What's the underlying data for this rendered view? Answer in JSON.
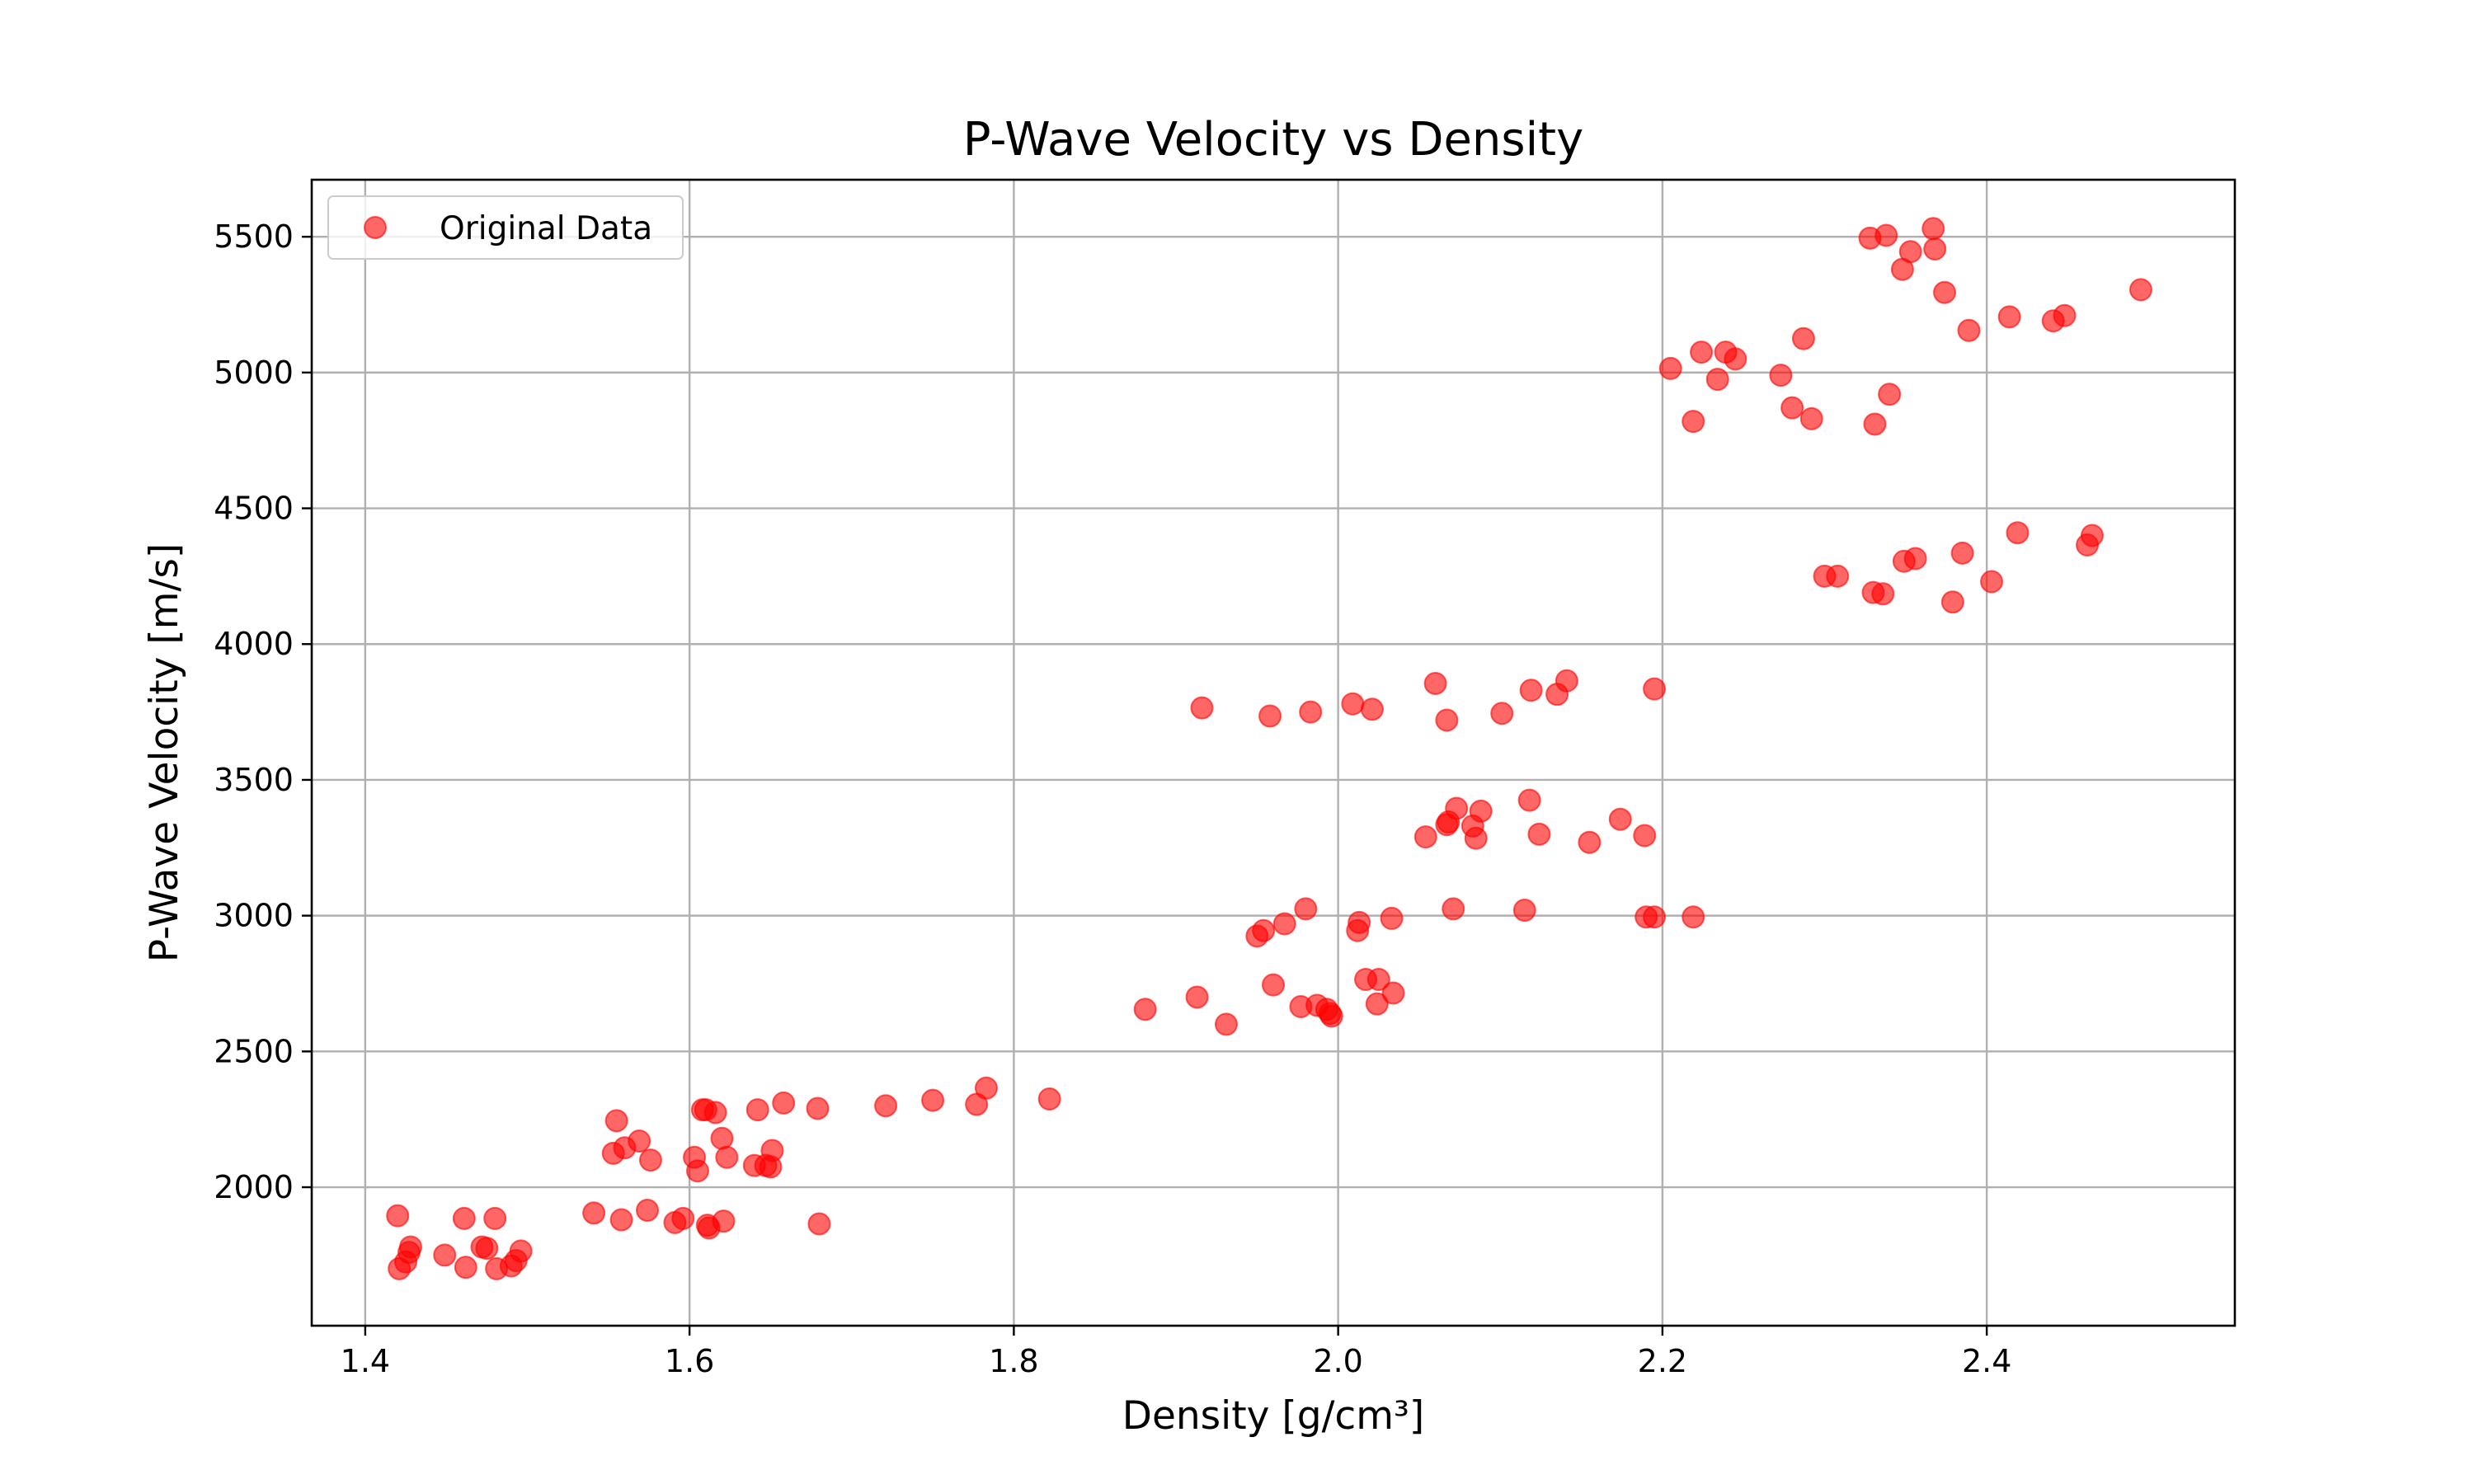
{
  "chart_data": {
    "type": "scatter",
    "title": "P-Wave Velocity vs Density",
    "xlabel": "Density [g/cm³]",
    "ylabel": "P-Wave Velocity [m/s]",
    "xlim": [
      1.367,
      2.553
    ],
    "ylim": [
      1490,
      5710
    ],
    "xticks": [
      1.4,
      1.6,
      1.8,
      2.0,
      2.2,
      2.4
    ],
    "xtick_labels": [
      "1.4",
      "1.6",
      "1.8",
      "2.0",
      "2.2",
      "2.4"
    ],
    "yticks": [
      2000,
      2500,
      3000,
      3500,
      4000,
      4500,
      5000,
      5500
    ],
    "ytick_labels": [
      "2000",
      "2500",
      "3000",
      "3500",
      "4000",
      "4500",
      "5000",
      "5500"
    ],
    "grid": true,
    "legend": {
      "position": "upper-left",
      "entries": [
        "Original Data"
      ]
    },
    "marker_color": "#ff0000",
    "marker_opacity": 0.6,
    "series": [
      {
        "name": "Original Data",
        "points": [
          [
            1.42,
            1895
          ],
          [
            1.421,
            1700
          ],
          [
            1.425,
            1725
          ],
          [
            1.427,
            1760
          ],
          [
            1.428,
            1780
          ],
          [
            1.449,
            1750
          ],
          [
            1.461,
            1885
          ],
          [
            1.462,
            1705
          ],
          [
            1.472,
            1780
          ],
          [
            1.475,
            1775
          ],
          [
            1.48,
            1885
          ],
          [
            1.481,
            1700
          ],
          [
            1.49,
            1710
          ],
          [
            1.493,
            1730
          ],
          [
            1.496,
            1765
          ],
          [
            1.541,
            1905
          ],
          [
            1.553,
            2125
          ],
          [
            1.555,
            2245
          ],
          [
            1.558,
            1880
          ],
          [
            1.56,
            2145
          ],
          [
            1.569,
            2170
          ],
          [
            1.574,
            1915
          ],
          [
            1.576,
            2100
          ],
          [
            1.591,
            1870
          ],
          [
            1.596,
            1885
          ],
          [
            1.603,
            2110
          ],
          [
            1.605,
            2060
          ],
          [
            1.608,
            2285
          ],
          [
            1.61,
            2285
          ],
          [
            1.611,
            1860
          ],
          [
            1.612,
            1850
          ],
          [
            1.616,
            2275
          ],
          [
            1.62,
            2180
          ],
          [
            1.621,
            1875
          ],
          [
            1.623,
            2110
          ],
          [
            1.64,
            2080
          ],
          [
            1.642,
            2285
          ],
          [
            1.647,
            2080
          ],
          [
            1.65,
            2075
          ],
          [
            1.651,
            2135
          ],
          [
            1.658,
            2310
          ],
          [
            1.679,
            2290
          ],
          [
            1.68,
            1865
          ],
          [
            1.721,
            2300
          ],
          [
            1.75,
            2320
          ],
          [
            1.777,
            2305
          ],
          [
            1.783,
            2365
          ],
          [
            1.822,
            2325
          ],
          [
            1.881,
            2655
          ],
          [
            1.913,
            2700
          ],
          [
            1.916,
            3765
          ],
          [
            1.931,
            2600
          ],
          [
            1.95,
            2925
          ],
          [
            1.954,
            2945
          ],
          [
            1.958,
            3735
          ],
          [
            1.96,
            2745
          ],
          [
            1.967,
            2970
          ],
          [
            1.977,
            2665
          ],
          [
            1.98,
            3025
          ],
          [
            1.983,
            3750
          ],
          [
            1.987,
            2670
          ],
          [
            1.993,
            2655
          ],
          [
            1.995,
            2640
          ],
          [
            1.996,
            2630
          ],
          [
            2.009,
            3780
          ],
          [
            2.012,
            2945
          ],
          [
            2.013,
            2975
          ],
          [
            2.017,
            2765
          ],
          [
            2.021,
            3760
          ],
          [
            2.024,
            2675
          ],
          [
            2.025,
            2765
          ],
          [
            2.033,
            2990
          ],
          [
            2.034,
            2715
          ],
          [
            2.054,
            3290
          ],
          [
            2.06,
            3855
          ],
          [
            2.067,
            3335
          ],
          [
            2.067,
            3720
          ],
          [
            2.068,
            3345
          ],
          [
            2.071,
            3025
          ],
          [
            2.073,
            3395
          ],
          [
            2.083,
            3330
          ],
          [
            2.085,
            3285
          ],
          [
            2.088,
            3385
          ],
          [
            2.101,
            3745
          ],
          [
            2.115,
            3020
          ],
          [
            2.118,
            3425
          ],
          [
            2.119,
            3830
          ],
          [
            2.124,
            3300
          ],
          [
            2.135,
            3815
          ],
          [
            2.141,
            3865
          ],
          [
            2.155,
            3270
          ],
          [
            2.174,
            3355
          ],
          [
            2.189,
            3295
          ],
          [
            2.19,
            2995
          ],
          [
            2.195,
            2995
          ],
          [
            2.195,
            3835
          ],
          [
            2.219,
            2995
          ],
          [
            2.205,
            5015
          ],
          [
            2.219,
            4820
          ],
          [
            2.224,
            5075
          ],
          [
            2.234,
            4975
          ],
          [
            2.239,
            5075
          ],
          [
            2.245,
            5050
          ],
          [
            2.273,
            4990
          ],
          [
            2.28,
            4870
          ],
          [
            2.287,
            5125
          ],
          [
            2.292,
            4830
          ],
          [
            2.3,
            4250
          ],
          [
            2.308,
            4250
          ],
          [
            2.328,
            5495
          ],
          [
            2.33,
            4190
          ],
          [
            2.331,
            4810
          ],
          [
            2.336,
            4185
          ],
          [
            2.338,
            5505
          ],
          [
            2.34,
            4920
          ],
          [
            2.348,
            5380
          ],
          [
            2.349,
            4305
          ],
          [
            2.353,
            5445
          ],
          [
            2.356,
            4315
          ],
          [
            2.367,
            5530
          ],
          [
            2.368,
            5455
          ],
          [
            2.374,
            5295
          ],
          [
            2.379,
            4155
          ],
          [
            2.385,
            4335
          ],
          [
            2.389,
            5155
          ],
          [
            2.403,
            4230
          ],
          [
            2.414,
            5205
          ],
          [
            2.419,
            4410
          ],
          [
            2.441,
            5190
          ],
          [
            2.448,
            5210
          ],
          [
            2.462,
            4365
          ],
          [
            2.465,
            4400
          ],
          [
            2.495,
            5305
          ]
        ]
      }
    ]
  }
}
